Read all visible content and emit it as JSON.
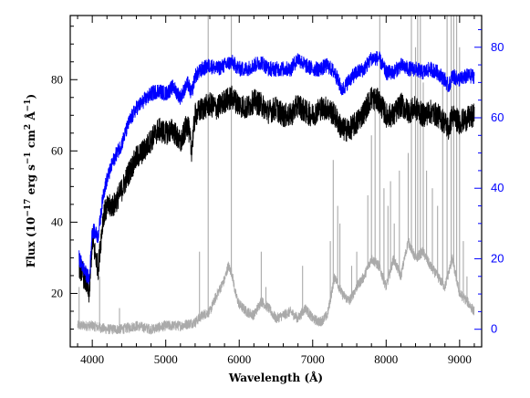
{
  "chart_data": {
    "type": "line",
    "title": "",
    "xlabel": "Wavelength (Å)",
    "ylabel_parts": {
      "flux": "Flux (10",
      "exp1": "−17",
      "erg": " erg s",
      "exp2": "−1",
      "cm": " cm",
      "exp3": "2",
      "ang": " Å",
      "exp4": "−1",
      "close": ")"
    },
    "xlim": [
      3700,
      9300
    ],
    "ylim_left": [
      5,
      98
    ],
    "ylim_right": [
      -5,
      89
    ],
    "x_ticks": [
      4000,
      5000,
      6000,
      7000,
      8000,
      9000
    ],
    "y_ticks_left": [
      20,
      40,
      60,
      80
    ],
    "y_ticks_right": [
      0,
      20,
      40,
      60,
      80
    ],
    "colors": {
      "black_series": "#000000",
      "blue_series": "#0000ff",
      "gray_series": "#aaaaaa",
      "right_axis": "#0000ff"
    },
    "series": [
      {
        "axis": "left",
        "color": "#000000",
        "x": [
          3820,
          3900,
          3960,
          4000,
          4080,
          4150,
          4200,
          4300,
          4400,
          4500,
          4600,
          4700,
          4800,
          4900,
          5000,
          5100,
          5200,
          5300,
          5350,
          5400,
          5500,
          5600,
          5700,
          5800,
          5900,
          6000,
          6100,
          6200,
          6300,
          6400,
          6500,
          6600,
          6700,
          6800,
          6900,
          7000,
          7100,
          7200,
          7300,
          7400,
          7500,
          7600,
          7700,
          7800,
          7900,
          8000,
          8100,
          8200,
          8300,
          8400,
          8500,
          8600,
          8700,
          8800,
          8850,
          8900,
          9000,
          9100,
          9200
        ],
        "y": [
          28,
          24,
          20,
          35,
          27,
          42,
          44,
          45,
          49,
          54,
          58,
          60,
          63,
          66,
          65,
          66,
          62,
          68,
          60,
          70,
          72,
          73,
          72,
          74,
          75,
          73,
          72,
          74,
          73,
          71,
          72,
          70,
          70,
          73,
          71,
          70,
          72,
          72,
          70,
          66,
          66,
          68,
          71,
          75,
          74,
          70,
          70,
          73,
          71,
          72,
          70,
          71,
          70,
          68,
          66,
          70,
          68,
          69,
          70
        ]
      },
      {
        "axis": "left",
        "color": "#0000ff",
        "x": [
          3820,
          3900,
          3960,
          4000,
          4080,
          4150,
          4200,
          4300,
          4400,
          4500,
          4600,
          4700,
          4800,
          4900,
          5000,
          5100,
          5200,
          5300,
          5350,
          5400,
          5500,
          5600,
          5700,
          5800,
          5900,
          6000,
          6100,
          6200,
          6300,
          6400,
          6500,
          6600,
          6700,
          6800,
          6900,
          7000,
          7100,
          7200,
          7300,
          7400,
          7500,
          7600,
          7700,
          7800,
          7900,
          8000,
          8100,
          8200,
          8300,
          8400,
          8500,
          8600,
          8700,
          8800,
          8850,
          8900,
          9000,
          9100,
          9200
        ],
        "y": [
          30,
          26,
          24,
          38,
          36,
          48,
          52,
          58,
          62,
          68,
          72,
          74,
          76,
          77,
          76,
          78,
          75,
          79,
          76,
          81,
          83,
          84,
          83,
          84,
          85,
          83,
          83,
          84,
          85,
          83,
          83,
          83,
          83,
          86,
          84,
          83,
          83,
          84,
          82,
          77,
          80,
          82,
          83,
          86,
          86,
          82,
          82,
          84,
          83,
          83,
          82,
          83,
          82,
          80,
          78,
          81,
          80,
          81,
          81
        ]
      },
      {
        "axis": "right",
        "color": "#aaaaaa",
        "x": [
          3800,
          4000,
          4200,
          4400,
          4600,
          4800,
          5000,
          5200,
          5400,
          5500,
          5600,
          5700,
          5800,
          5850,
          5900,
          5950,
          6000,
          6100,
          6200,
          6300,
          6400,
          6500,
          6600,
          6700,
          6800,
          6900,
          7000,
          7100,
          7200,
          7300,
          7400,
          7500,
          7600,
          7700,
          7800,
          7900,
          8000,
          8100,
          8200,
          8300,
          8400,
          8500,
          8600,
          8700,
          8800,
          8900,
          9000,
          9100,
          9200
        ],
        "y": [
          1,
          1,
          0,
          0,
          1,
          0,
          1,
          1,
          2,
          4,
          5,
          10,
          14,
          18,
          16,
          10,
          7,
          5,
          4,
          8,
          6,
          3,
          4,
          5,
          3,
          6,
          3,
          2,
          4,
          15,
          10,
          8,
          12,
          15,
          20,
          18,
          12,
          20,
          15,
          25,
          20,
          22,
          18,
          15,
          12,
          20,
          10,
          8,
          5
        ]
      }
    ],
    "spikes": [
      {
        "x": 3820,
        "y": 12
      },
      {
        "x": 4100,
        "y": 15
      },
      {
        "x": 4370,
        "y": 6
      },
      {
        "x": 5460,
        "y": 22
      },
      {
        "x": 5577,
        "y": 92
      },
      {
        "x": 5893,
        "y": 92
      },
      {
        "x": 6300,
        "y": 22
      },
      {
        "x": 6364,
        "y": 12
      },
      {
        "x": 6863,
        "y": 18
      },
      {
        "x": 7240,
        "y": 25
      },
      {
        "x": 7280,
        "y": 48
      },
      {
        "x": 7340,
        "y": 35
      },
      {
        "x": 7370,
        "y": 30
      },
      {
        "x": 7530,
        "y": 18
      },
      {
        "x": 7600,
        "y": 22
      },
      {
        "x": 7750,
        "y": 38
      },
      {
        "x": 7800,
        "y": 55
      },
      {
        "x": 7850,
        "y": 62
      },
      {
        "x": 7913,
        "y": 92
      },
      {
        "x": 7970,
        "y": 40
      },
      {
        "x": 8025,
        "y": 35
      },
      {
        "x": 8060,
        "y": 42
      },
      {
        "x": 8110,
        "y": 30
      },
      {
        "x": 8180,
        "y": 45
      },
      {
        "x": 8300,
        "y": 50
      },
      {
        "x": 8344,
        "y": 92
      },
      {
        "x": 8400,
        "y": 80
      },
      {
        "x": 8430,
        "y": 92
      },
      {
        "x": 8465,
        "y": 92
      },
      {
        "x": 8505,
        "y": 70
      },
      {
        "x": 8550,
        "y": 45
      },
      {
        "x": 8630,
        "y": 40
      },
      {
        "x": 8700,
        "y": 35
      },
      {
        "x": 8770,
        "y": 70
      },
      {
        "x": 8830,
        "y": 92
      },
      {
        "x": 8885,
        "y": 92
      },
      {
        "x": 8920,
        "y": 92
      },
      {
        "x": 8960,
        "y": 92
      },
      {
        "x": 9000,
        "y": 80
      },
      {
        "x": 9050,
        "y": 25
      },
      {
        "x": 9100,
        "y": 15
      }
    ],
    "noise": {
      "black_amplitude": 3.5,
      "blue_amplitude": 2.2,
      "gray_amplitude": 1.5
    }
  }
}
